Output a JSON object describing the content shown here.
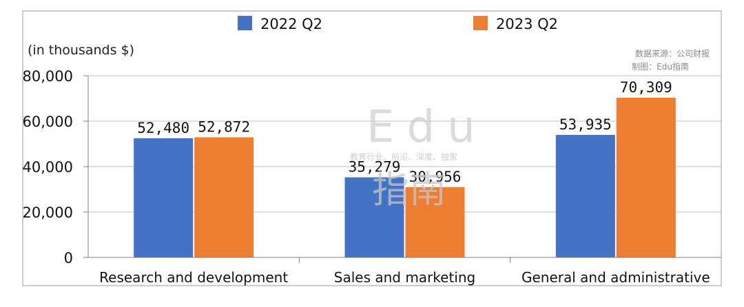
{
  "chart_data": {
    "type": "bar",
    "unit_label": "(in thousands $)",
    "categories": [
      "Research and development",
      "Sales and marketing",
      "General and administrative"
    ],
    "series": [
      {
        "name": "2022 Q2",
        "values": [
          52480,
          35279,
          53935
        ]
      },
      {
        "name": "2023 Q2",
        "values": [
          52872,
          30956,
          70309
        ]
      }
    ],
    "value_labels": [
      [
        "52,480",
        "35,279",
        "53,935"
      ],
      [
        "52,872",
        "30,956",
        "70,309"
      ]
    ],
    "yticks": [
      "0",
      "20,000",
      "40,000",
      "60,000",
      "80,000"
    ],
    "ytick_values": [
      0,
      20000,
      40000,
      60000,
      80000
    ],
    "ylim": [
      0,
      80000
    ],
    "grid": true,
    "legend_position": "top",
    "colors": {
      "2022 Q2": "#4472c4",
      "2023 Q2": "#ed7d31",
      "grid": "#bfbfbf",
      "axis": "#7f7f7f"
    }
  },
  "source_note": {
    "line1": "数据来源：公司财报",
    "line2": "制图：Edu指南"
  },
  "watermark": {
    "brand": "Edu",
    "tagline": "教育行业、前沿、深度、独家",
    "cn": "指南"
  }
}
